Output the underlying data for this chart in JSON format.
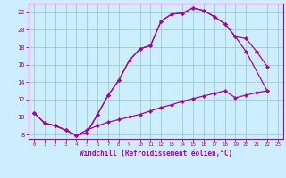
{
  "xlabel": "Windchill (Refroidissement éolien,°C)",
  "bg_color": "#cceeff",
  "line_color": "#aa00aa",
  "grid_color": "#99cccc",
  "xlim": [
    -0.5,
    23.5
  ],
  "ylim": [
    7.5,
    23.0
  ],
  "xticks": [
    0,
    1,
    2,
    3,
    4,
    5,
    6,
    7,
    8,
    9,
    10,
    11,
    12,
    13,
    14,
    15,
    16,
    17,
    18,
    19,
    20,
    21,
    22,
    23
  ],
  "yticks": [
    8,
    10,
    12,
    14,
    16,
    18,
    20,
    22
  ],
  "curve1_x": [
    0,
    1,
    2,
    3,
    4,
    5,
    6,
    7,
    8,
    9,
    10,
    11,
    12,
    13,
    14,
    15,
    16,
    17,
    18,
    19,
    20,
    21,
    22
  ],
  "curve1_y": [
    10.5,
    9.3,
    9.0,
    8.5,
    7.9,
    8.2,
    10.3,
    12.5,
    14.2,
    16.5,
    17.8,
    18.2,
    21.0,
    21.8,
    21.9,
    22.5,
    22.2,
    21.5,
    20.7,
    19.2,
    19.0,
    17.5,
    15.8
  ],
  "curve2_x": [
    0,
    1,
    2,
    3,
    4,
    5,
    6,
    7,
    8,
    9,
    10,
    11,
    12,
    13,
    14,
    15,
    16,
    17,
    18,
    19,
    20,
    22
  ],
  "curve2_y": [
    10.5,
    9.3,
    9.0,
    8.5,
    7.9,
    8.2,
    10.3,
    12.5,
    14.2,
    16.5,
    17.8,
    18.2,
    21.0,
    21.8,
    21.9,
    22.5,
    22.2,
    21.5,
    20.7,
    19.2,
    17.5,
    13.0
  ],
  "curve3_x": [
    0,
    1,
    2,
    3,
    4,
    5,
    6,
    7,
    8,
    9,
    10,
    11,
    12,
    13,
    14,
    15,
    16,
    17,
    18,
    19,
    20,
    21,
    22
  ],
  "curve3_y": [
    10.5,
    9.3,
    9.0,
    8.5,
    7.9,
    8.5,
    9.0,
    9.4,
    9.7,
    10.0,
    10.3,
    10.7,
    11.1,
    11.4,
    11.8,
    12.1,
    12.4,
    12.7,
    13.0,
    12.2,
    12.5,
    12.8,
    13.0
  ]
}
